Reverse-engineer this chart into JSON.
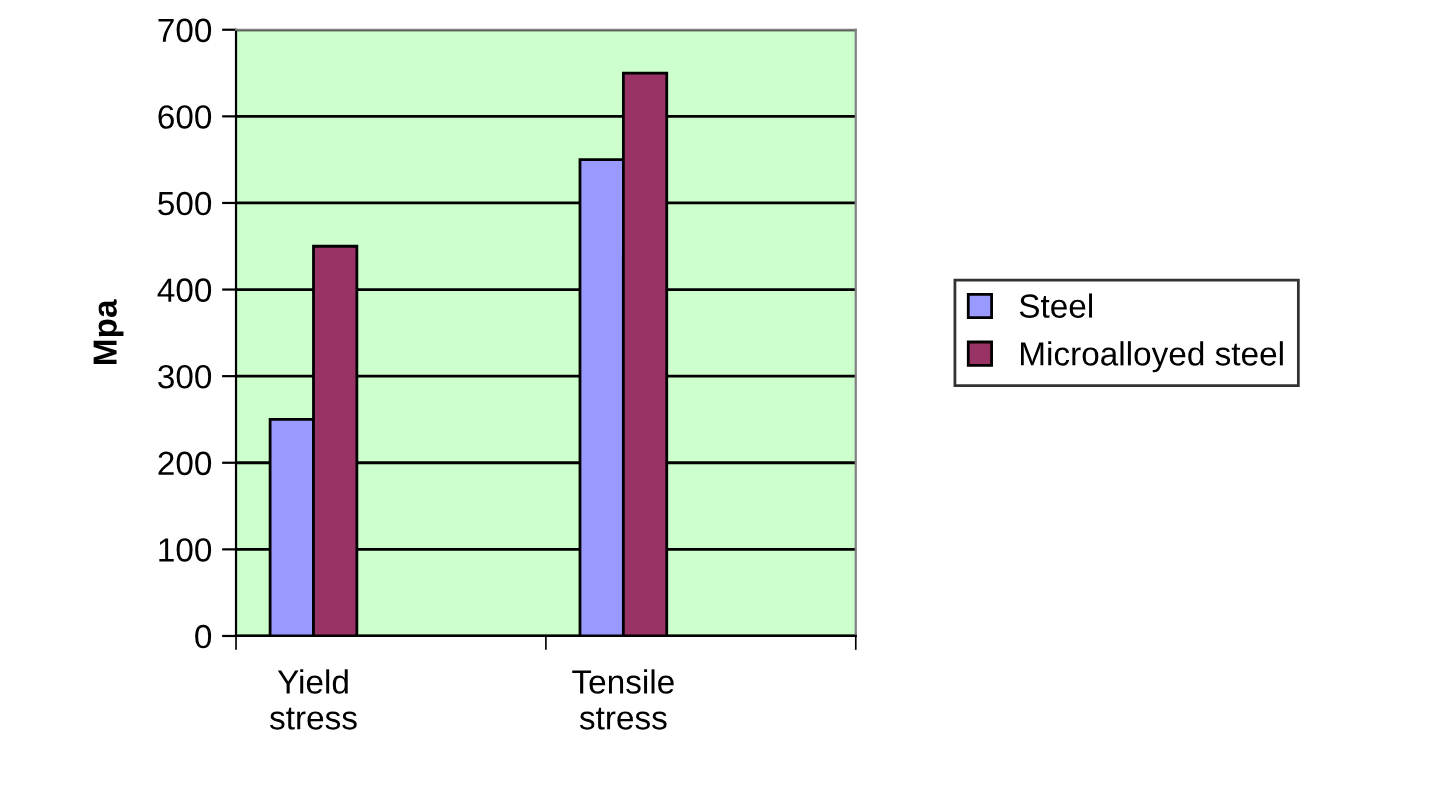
{
  "chart_data": {
    "type": "bar",
    "ylabel": "Mpa",
    "categories": [
      "Yield stress",
      "Tensile stress"
    ],
    "series": [
      {
        "name": "Steel",
        "color": "#9999ff",
        "values": [
          250,
          550
        ]
      },
      {
        "name": "Microalloyed steel",
        "color": "#993366",
        "values": [
          450,
          650
        ]
      }
    ],
    "ylim": [
      0,
      700
    ],
    "yticks": [
      0,
      100,
      200,
      300,
      400,
      500,
      600,
      700
    ],
    "grid": "y",
    "legend": "right"
  }
}
